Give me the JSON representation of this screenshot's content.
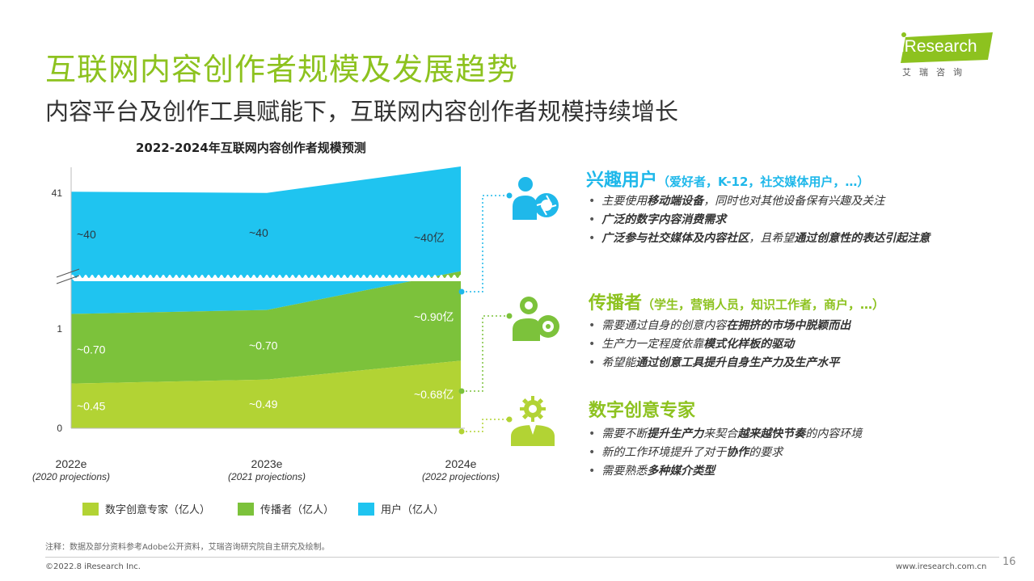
{
  "header": {
    "title": "互联网内容创作者规模及发展趋势",
    "subtitle": "内容平台及创作工具赋能下，互联网内容创作者规模持续增长"
  },
  "logo": {
    "brand": "iResearch",
    "cn": "艾瑞咨询"
  },
  "colors": {
    "users": "#1fc4f0",
    "spreaders": "#7cc23b",
    "experts": "#b2d334",
    "accent_green": "#8dc21f",
    "accent_blue": "#1fb8ea"
  },
  "chart_data": {
    "type": "area",
    "stacked": true,
    "title": "2022-2024年互联网内容创作者规模预测",
    "x": [
      "2022e",
      "2023e",
      "2024e"
    ],
    "x_notes": [
      "(2020 projections)",
      "(2021 projections)",
      "(2022 projections)"
    ],
    "y_ticks": [
      "0",
      "1",
      "41"
    ],
    "axis_break": true,
    "series": [
      {
        "name": "数字创意专家（亿人）",
        "values": [
          0.45,
          0.49,
          0.68
        ],
        "labels": [
          "~0.45",
          "~0.49",
          "~0.68亿"
        ]
      },
      {
        "name": "传播者（亿人）",
        "values": [
          0.7,
          0.7,
          0.9
        ],
        "labels": [
          "~0.70",
          "~0.70",
          "~0.90亿"
        ]
      },
      {
        "name": "用户（亿人）",
        "values": [
          40,
          40,
          40
        ],
        "labels": [
          "~40",
          "~40",
          "~40亿"
        ]
      }
    ]
  },
  "segments": [
    {
      "title": "兴趣用户",
      "subtitle": "（爱好者，K-12，社交媒体用户，…）",
      "icon": "person-camera-shutter-icon",
      "bullets": [
        [
          {
            "t": "主要使用",
            "b": false
          },
          {
            "t": "移动端设备",
            "b": true
          },
          {
            "t": "，同时也对其他设备保有兴趣及关注",
            "b": false
          }
        ],
        [
          {
            "t": "广泛的数字内容消费需求",
            "b": true
          }
        ],
        [
          {
            "t": "广泛参与社交媒体及内容社区",
            "b": true
          },
          {
            "t": "，且希望",
            "b": false
          },
          {
            "t": "通过创意性的表达引起注意",
            "b": true
          }
        ]
      ]
    },
    {
      "title": "传播者",
      "subtitle": "（学生，营销人员，知识工作者，商户，…）",
      "icon": "person-webcam-icon",
      "bullets": [
        [
          {
            "t": "需要通过自身的创意内容",
            "b": false
          },
          {
            "t": "在拥挤的市场中脱颖而出",
            "b": true
          }
        ],
        [
          {
            "t": "生产力一定程度依靠",
            "b": false
          },
          {
            "t": "模式化样板的驱动",
            "b": true
          }
        ],
        [
          {
            "t": "希望能",
            "b": false
          },
          {
            "t": "通过创意工具提升自身生产力及生产水平",
            "b": true
          }
        ]
      ]
    },
    {
      "title": "数字创意专家",
      "subtitle": "",
      "icon": "person-gear-icon",
      "bullets": [
        [
          {
            "t": "需要不断",
            "b": false
          },
          {
            "t": "提升生产力",
            "b": true
          },
          {
            "t": "来契合",
            "b": false
          },
          {
            "t": "越来越快节奏",
            "b": true
          },
          {
            "t": "的内容环境",
            "b": false
          }
        ],
        [
          {
            "t": "新的工作环境提升了对于",
            "b": false
          },
          {
            "t": "协作",
            "b": true
          },
          {
            "t": "的要求",
            "b": false
          }
        ],
        [
          {
            "t": "需要熟悉",
            "b": false
          },
          {
            "t": "多种媒介类型",
            "b": true
          }
        ]
      ]
    }
  ],
  "legend": [
    "数字创意专家（亿人）",
    "传播者（亿人）",
    "用户（亿人）"
  ],
  "footer": {
    "note": "注释：数据及部分资料参考Adobe公开资料，艾瑞咨询研究院自主研究及绘制。",
    "copyright": "©2022.8 iResearch Inc.",
    "site": "www.iresearch.com.cn",
    "page": "16"
  }
}
